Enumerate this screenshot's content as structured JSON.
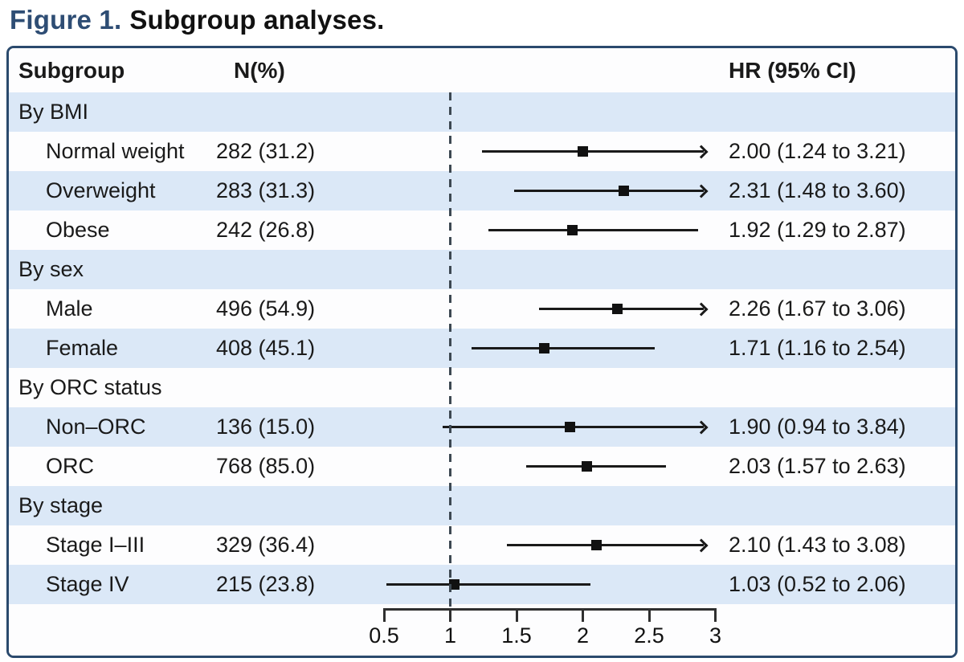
{
  "title": {
    "prefix": "Figure 1.",
    "text": "Subgroup analyses."
  },
  "colors": {
    "title_accent": "#2e4d74",
    "box_border": "#2b4a6d",
    "band_blue": "#dbe8f7",
    "band_white": "#fdfdfe",
    "marker_black": "#111111",
    "ref_dash": "#3d4852"
  },
  "chart_data": {
    "type": "forest",
    "title": "Figure 1. Subgroup analyses.",
    "columns": {
      "subgroup": "Subgroup",
      "n": "N(%)",
      "hr": "HR (95% CI)"
    },
    "axis": {
      "range": [
        0.5,
        3
      ],
      "tick_values": [
        0.5,
        1,
        1.5,
        2,
        2.5,
        3
      ],
      "tick_labels": [
        "0.5",
        "1",
        "1.5",
        "2",
        "2.5",
        "3"
      ],
      "reference_line": 1,
      "arrow_when_above": 3
    },
    "rows": [
      {
        "type": "group",
        "label": "By BMI"
      },
      {
        "type": "item",
        "label": "Normal weight",
        "n": "282 (31.2)",
        "hr": 2.0,
        "lo": 1.24,
        "hi": 3.21,
        "hr_text": "2.00 (1.24 to 3.21)",
        "arrow": true
      },
      {
        "type": "item",
        "label": "Overweight",
        "n": "283 (31.3)",
        "hr": 2.31,
        "lo": 1.48,
        "hi": 3.6,
        "hr_text": "2.31 (1.48 to 3.60)",
        "arrow": true
      },
      {
        "type": "item",
        "label": "Obese",
        "n": "242 (26.8)",
        "hr": 1.92,
        "lo": 1.29,
        "hi": 2.87,
        "hr_text": "1.92 (1.29 to 2.87)",
        "arrow": false
      },
      {
        "type": "group",
        "label": "By sex"
      },
      {
        "type": "item",
        "label": "Male",
        "n": "496 (54.9)",
        "hr": 2.26,
        "lo": 1.67,
        "hi": 3.06,
        "hr_text": "2.26 (1.67 to 3.06)",
        "arrow": true
      },
      {
        "type": "item",
        "label": "Female",
        "n": "408 (45.1)",
        "hr": 1.71,
        "lo": 1.16,
        "hi": 2.54,
        "hr_text": "1.71 (1.16 to 2.54)",
        "arrow": false
      },
      {
        "type": "group",
        "label": "By ORC status"
      },
      {
        "type": "item",
        "label": "Non–ORC",
        "n": "136 (15.0)",
        "hr": 1.9,
        "lo": 0.94,
        "hi": 3.84,
        "hr_text": "1.90 (0.94 to 3.84)",
        "arrow": true
      },
      {
        "type": "item",
        "label": "ORC",
        "n": "768 (85.0)",
        "hr": 2.03,
        "lo": 1.57,
        "hi": 2.63,
        "hr_text": "2.03 (1.57 to 2.63)",
        "arrow": false
      },
      {
        "type": "group",
        "label": "By stage"
      },
      {
        "type": "item",
        "label": "Stage I–III",
        "n": "329 (36.4)",
        "hr": 2.1,
        "lo": 1.43,
        "hi": 3.08,
        "hr_text": "2.10 (1.43 to 3.08)",
        "arrow": true
      },
      {
        "type": "item",
        "label": "Stage IV",
        "n": "215 (23.8)",
        "hr": 1.03,
        "lo": 0.52,
        "hi": 2.06,
        "hr_text": "1.03 (0.52 to 2.06)",
        "arrow": false
      }
    ]
  }
}
